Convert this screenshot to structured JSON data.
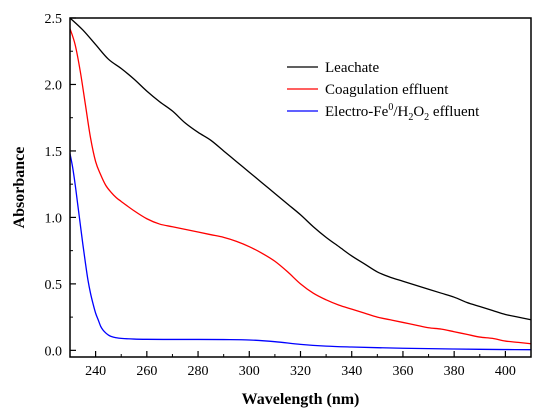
{
  "chart_data": {
    "type": "line",
    "title": "",
    "xlabel": "Wavelength (nm)",
    "ylabel": "Absorbance",
    "xlim": [
      230,
      410
    ],
    "ylim": [
      -0.05,
      2.5
    ],
    "xticks": [
      240,
      260,
      280,
      300,
      320,
      340,
      360,
      380,
      400
    ],
    "yticks": [
      0.0,
      0.5,
      1.0,
      1.5,
      2.0,
      2.5
    ],
    "xtick_labels": [
      "240",
      "260",
      "280",
      "300",
      "320",
      "340",
      "360",
      "380",
      "400"
    ],
    "ytick_labels": [
      "0.0",
      "0.5",
      "1.0",
      "1.5",
      "2.0",
      "2.5"
    ],
    "grid": false,
    "legend_position": "top-right",
    "series": [
      {
        "name": "Leachate",
        "color": "#000000",
        "x": [
          230,
          235,
          240,
          245,
          250,
          255,
          260,
          265,
          270,
          275,
          280,
          285,
          290,
          295,
          300,
          305,
          310,
          315,
          320,
          325,
          330,
          335,
          340,
          345,
          350,
          355,
          360,
          365,
          370,
          375,
          380,
          385,
          390,
          395,
          400,
          405,
          410
        ],
        "y": [
          2.5,
          2.41,
          2.3,
          2.19,
          2.12,
          2.04,
          1.95,
          1.87,
          1.8,
          1.71,
          1.64,
          1.58,
          1.5,
          1.42,
          1.34,
          1.26,
          1.18,
          1.1,
          1.02,
          0.93,
          0.85,
          0.78,
          0.71,
          0.65,
          0.59,
          0.55,
          0.52,
          0.49,
          0.46,
          0.43,
          0.4,
          0.36,
          0.33,
          0.3,
          0.27,
          0.25,
          0.23
        ]
      },
      {
        "name": "Coagulation effluent",
        "color": "#ff0000",
        "x": [
          230,
          232,
          234,
          236,
          238,
          240,
          242,
          244,
          246,
          248,
          250,
          255,
          260,
          265,
          270,
          275,
          280,
          285,
          290,
          295,
          300,
          305,
          310,
          315,
          320,
          325,
          330,
          335,
          340,
          345,
          350,
          355,
          360,
          365,
          370,
          375,
          380,
          385,
          390,
          395,
          400,
          405,
          410
        ],
        "y": [
          2.42,
          2.3,
          2.1,
          1.85,
          1.6,
          1.42,
          1.32,
          1.24,
          1.19,
          1.15,
          1.12,
          1.05,
          0.99,
          0.95,
          0.93,
          0.91,
          0.89,
          0.87,
          0.85,
          0.82,
          0.78,
          0.73,
          0.67,
          0.59,
          0.5,
          0.43,
          0.38,
          0.34,
          0.31,
          0.28,
          0.25,
          0.23,
          0.21,
          0.19,
          0.17,
          0.16,
          0.14,
          0.12,
          0.1,
          0.09,
          0.07,
          0.06,
          0.05
        ]
      },
      {
        "name": "Electro-Fe0/H2O2 effluent",
        "color": "#0000ff",
        "x": [
          230,
          231,
          232,
          233,
          234,
          235,
          236,
          237,
          238,
          239,
          240,
          241,
          242,
          243,
          244,
          245,
          246,
          248,
          250,
          255,
          260,
          270,
          280,
          290,
          300,
          310,
          320,
          330,
          340,
          350,
          360,
          370,
          380,
          390,
          400,
          410
        ],
        "y": [
          1.48,
          1.38,
          1.25,
          1.1,
          0.95,
          0.8,
          0.66,
          0.53,
          0.43,
          0.35,
          0.28,
          0.23,
          0.18,
          0.15,
          0.13,
          0.115,
          0.105,
          0.095,
          0.09,
          0.085,
          0.083,
          0.082,
          0.082,
          0.081,
          0.078,
          0.065,
          0.045,
          0.032,
          0.025,
          0.02,
          0.016,
          0.013,
          0.01,
          0.008,
          0.006,
          0.005
        ]
      }
    ],
    "legend": {
      "entries": [
        {
          "text": "Leachate",
          "color": "#000000"
        },
        {
          "text": "Coagulation effluent",
          "color": "#ff0000"
        },
        {
          "text_parts": [
            "Electro-Fe",
            "0",
            "/H",
            "2",
            "O",
            "2",
            " effluent"
          ],
          "color": "#0000ff"
        }
      ]
    }
  }
}
